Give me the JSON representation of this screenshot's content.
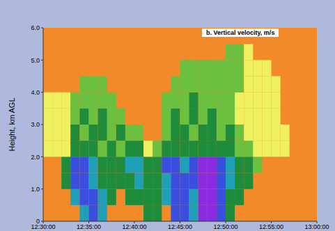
{
  "chart_data": {
    "type": "heatmap",
    "title": "b. Vertical velocity, m/s",
    "y_label": "Height, km AGL",
    "x": [
      750.5,
      751.5,
      752.5,
      753.5,
      754.5,
      755.5,
      756.5,
      757.5,
      758.5,
      759.5,
      760.5,
      761.5,
      762.5,
      763.5,
      764.5,
      765.5,
      766.5,
      767.5,
      768.5,
      769.5,
      770.5,
      771.5,
      772.5,
      773.5,
      774.5,
      775.5,
      776.5,
      777.5,
      778.5,
      779.5
    ],
    "y": [
      0.25,
      0.75,
      1.25,
      1.75,
      2.25,
      2.75,
      3.25,
      3.75,
      4.25,
      4.75,
      5.25,
      5.75
    ],
    "cells": [
      [
        null,
        null,
        null,
        null,
        -4,
        -6,
        -4,
        null,
        null,
        null,
        null,
        -2,
        -2,
        null,
        -6,
        -6,
        -4,
        -8,
        -8,
        -6,
        -2,
        null,
        null,
        null,
        null,
        null,
        null,
        null,
        null,
        null
      ],
      [
        null,
        null,
        null,
        -4,
        -6,
        -6,
        -4,
        -2,
        null,
        -2,
        -2,
        -2,
        -2,
        -4,
        -6,
        -6,
        -4,
        -8,
        -8,
        -6,
        -2,
        -2,
        null,
        null,
        null,
        null,
        null,
        null,
        null,
        null
      ],
      [
        null,
        null,
        -2,
        -6,
        -6,
        -4,
        -2,
        -2,
        -2,
        -2,
        -4,
        -2,
        -2,
        -4,
        -6,
        -6,
        -6,
        -8,
        -8,
        -6,
        -4,
        -2,
        -2,
        null,
        null,
        null,
        null,
        null,
        null,
        null
      ],
      [
        null,
        null,
        -2,
        -6,
        -6,
        -4,
        -2,
        -2,
        -2,
        -4,
        -4,
        -2,
        -2,
        -6,
        -6,
        -4,
        -6,
        -8,
        -8,
        -6,
        -4,
        -2,
        -2,
        -1,
        null,
        null,
        null,
        null,
        null,
        null
      ],
      [
        1,
        1,
        1,
        -2,
        -2,
        -2,
        -1,
        -2,
        -1,
        -2,
        -2,
        1,
        -1,
        -2,
        -2,
        -2,
        -2,
        -2,
        -2,
        -2,
        -2,
        -1,
        -1,
        1,
        1,
        1,
        1,
        null,
        null,
        null
      ],
      [
        1,
        1,
        1,
        -2,
        -1,
        -2,
        -2,
        -1,
        -2,
        -1,
        -1,
        null,
        null,
        -1,
        -2,
        -2,
        -1,
        -2,
        -2,
        -1,
        -2,
        -1,
        1,
        1,
        1,
        1,
        1,
        null,
        null,
        null
      ],
      [
        1,
        1,
        1,
        -1,
        -2,
        -1,
        -2,
        -1,
        -1,
        null,
        null,
        null,
        null,
        -1,
        -2,
        -1,
        -2,
        -1,
        -2,
        -1,
        -1,
        1,
        1,
        1,
        1,
        1,
        null,
        null,
        null,
        null
      ],
      [
        1,
        1,
        1,
        -1,
        -1,
        -1,
        -1,
        -1,
        null,
        null,
        null,
        null,
        null,
        -1,
        -1,
        -1,
        -2,
        -1,
        -1,
        -1,
        -1,
        1,
        1,
        1,
        1,
        1,
        null,
        null,
        null,
        null
      ],
      [
        null,
        null,
        null,
        null,
        -1,
        -1,
        -1,
        null,
        null,
        null,
        null,
        null,
        null,
        null,
        -1,
        -1,
        -1,
        -1,
        -1,
        -1,
        -1,
        -1,
        1,
        1,
        1,
        1,
        null,
        null,
        null,
        null
      ],
      [
        null,
        null,
        null,
        null,
        null,
        null,
        null,
        null,
        null,
        null,
        null,
        null,
        null,
        null,
        null,
        -1,
        -1,
        -1,
        -1,
        -1,
        -1,
        -1,
        1,
        1,
        1,
        null,
        null,
        null,
        null,
        null
      ],
      [
        null,
        null,
        null,
        null,
        null,
        null,
        null,
        null,
        null,
        null,
        null,
        null,
        null,
        null,
        null,
        null,
        null,
        null,
        null,
        null,
        -1,
        -1,
        1,
        null,
        null,
        null,
        null,
        null,
        null,
        null
      ],
      [
        null,
        null,
        null,
        null,
        null,
        null,
        null,
        null,
        null,
        null,
        null,
        null,
        null,
        null,
        null,
        null,
        null,
        null,
        null,
        null,
        null,
        null,
        null,
        null,
        null,
        null,
        null,
        null,
        null,
        null
      ]
    ],
    "zlim": [
      -8,
      2
    ],
    "xlim": [
      750,
      780
    ],
    "xticks": [
      {
        "value": 750,
        "label": "12:30:00"
      },
      {
        "value": 755,
        "label": "12:35:00"
      },
      {
        "value": 760,
        "label": "12:40:00"
      },
      {
        "value": 765,
        "label": "12:45:00"
      },
      {
        "value": 770,
        "label": "12:50:00"
      },
      {
        "value": 775,
        "label": "12:55:00"
      },
      {
        "value": 780,
        "label": "13:00:00"
      }
    ],
    "ylim": [
      0,
      6
    ],
    "yticks": [
      0,
      {
        "value": 1,
        "label": "1.0"
      },
      {
        "value": 2,
        "label": "2.0"
      },
      {
        "value": 3,
        "label": "3.0"
      },
      {
        "value": 4,
        "label": "4.0"
      },
      {
        "value": 5,
        "label": "5.0"
      },
      {
        "value": 6,
        "label": "6.0"
      }
    ],
    "grid": false
  }
}
